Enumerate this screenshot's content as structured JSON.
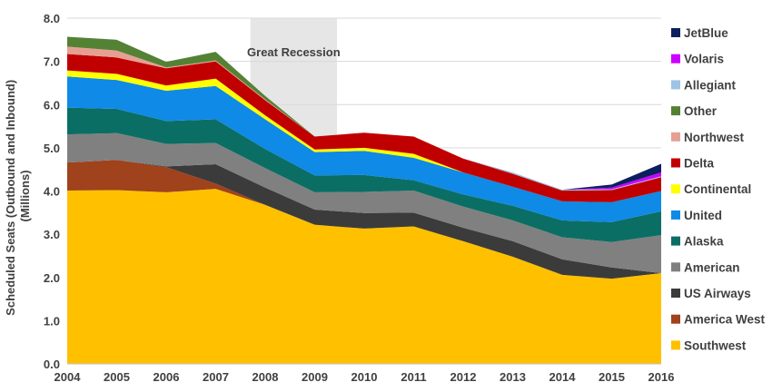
{
  "chart_data": {
    "type": "area",
    "stacked": true,
    "x": [
      2004,
      2005,
      2006,
      2007,
      2008,
      2009,
      2010,
      2011,
      2012,
      2013,
      2014,
      2015,
      2016
    ],
    "xtick_labels": [
      "2004",
      "2005",
      "2006",
      "2007",
      "2008",
      "2009",
      "2010",
      "2011",
      "2012",
      "2013",
      "2014",
      "2015",
      "2016"
    ],
    "ylim": [
      0,
      8
    ],
    "ytick_labels": [
      "0.0",
      "1.0",
      "2.0",
      "3.0",
      "4.0",
      "5.0",
      "6.0",
      "7.0",
      "8.0"
    ],
    "ylabel": "Scheduled Seats (Outbound and Inbound)\n(Millions)",
    "ylabel_lines": [
      "Scheduled Seats (Outbound and Inbound)",
      "(Millions)"
    ],
    "grid": "horizontal",
    "legend_position": "right",
    "annotation": {
      "label": "Great Recession",
      "x_range": [
        2007.7,
        2009.45
      ]
    },
    "series": [
      {
        "name": "Southwest",
        "color": "#FFC000",
        "values": [
          4.01,
          4.02,
          3.97,
          4.05,
          3.68,
          3.22,
          3.13,
          3.18,
          2.84,
          2.48,
          2.06,
          1.97,
          2.1
        ]
      },
      {
        "name": "America West",
        "color": "#A0421B",
        "values": [
          0.65,
          0.7,
          0.58,
          0.12,
          0.0,
          0.0,
          0.0,
          0.0,
          0.0,
          0.0,
          0.0,
          0.0,
          0.0
        ]
      },
      {
        "name": "US Airways",
        "color": "#3B3B3B",
        "values": [
          0.0,
          0.0,
          0.02,
          0.45,
          0.4,
          0.35,
          0.36,
          0.32,
          0.31,
          0.36,
          0.36,
          0.26,
          0.0
        ]
      },
      {
        "name": "American",
        "color": "#808080",
        "values": [
          0.65,
          0.62,
          0.52,
          0.49,
          0.45,
          0.4,
          0.49,
          0.51,
          0.49,
          0.48,
          0.51,
          0.59,
          0.88
        ]
      },
      {
        "name": "Alaska",
        "color": "#0B6E64",
        "values": [
          0.62,
          0.56,
          0.53,
          0.55,
          0.44,
          0.39,
          0.39,
          0.24,
          0.28,
          0.34,
          0.39,
          0.46,
          0.55
        ]
      },
      {
        "name": "United",
        "color": "#0F8AE6",
        "values": [
          0.72,
          0.67,
          0.7,
          0.77,
          0.69,
          0.54,
          0.56,
          0.52,
          0.51,
          0.44,
          0.44,
          0.46,
          0.47
        ]
      },
      {
        "name": "Continental",
        "color": "#FFFF00",
        "values": [
          0.14,
          0.14,
          0.12,
          0.17,
          0.09,
          0.06,
          0.07,
          0.09,
          0.0,
          0.0,
          0.0,
          0.0,
          0.0
        ]
      },
      {
        "name": "Delta",
        "color": "#C00000",
        "values": [
          0.38,
          0.38,
          0.4,
          0.4,
          0.35,
          0.3,
          0.35,
          0.4,
          0.32,
          0.3,
          0.25,
          0.28,
          0.32
        ]
      },
      {
        "name": "Northwest",
        "color": "#E6A093",
        "values": [
          0.17,
          0.16,
          0.02,
          0.02,
          0.02,
          0.0,
          0.0,
          0.0,
          0.0,
          0.0,
          0.0,
          0.0,
          0.0
        ]
      },
      {
        "name": "Other",
        "color": "#548235",
        "values": [
          0.23,
          0.25,
          0.13,
          0.2,
          0.08,
          0.0,
          0.0,
          0.0,
          0.0,
          0.0,
          0.0,
          0.0,
          0.0
        ]
      },
      {
        "name": "Allegiant",
        "color": "#9DC3E6",
        "values": [
          0.0,
          0.0,
          0.0,
          0.0,
          0.0,
          0.0,
          0.0,
          0.0,
          0.0,
          0.03,
          0.02,
          0.02,
          0.02
        ]
      },
      {
        "name": "Volaris",
        "color": "#CC00FF",
        "values": [
          0.0,
          0.0,
          0.0,
          0.0,
          0.0,
          0.0,
          0.0,
          0.0,
          0.0,
          0.0,
          0.0,
          0.04,
          0.09
        ]
      },
      {
        "name": "JetBlue",
        "color": "#0B1F5E",
        "values": [
          0.0,
          0.0,
          0.0,
          0.0,
          0.0,
          0.0,
          0.0,
          0.0,
          0.0,
          0.0,
          0.0,
          0.07,
          0.2
        ]
      }
    ],
    "legend_order": [
      "JetBlue",
      "Volaris",
      "Allegiant",
      "Other",
      "Northwest",
      "Delta",
      "Continental",
      "United",
      "Alaska",
      "American",
      "US Airways",
      "America West",
      "Southwest"
    ]
  }
}
